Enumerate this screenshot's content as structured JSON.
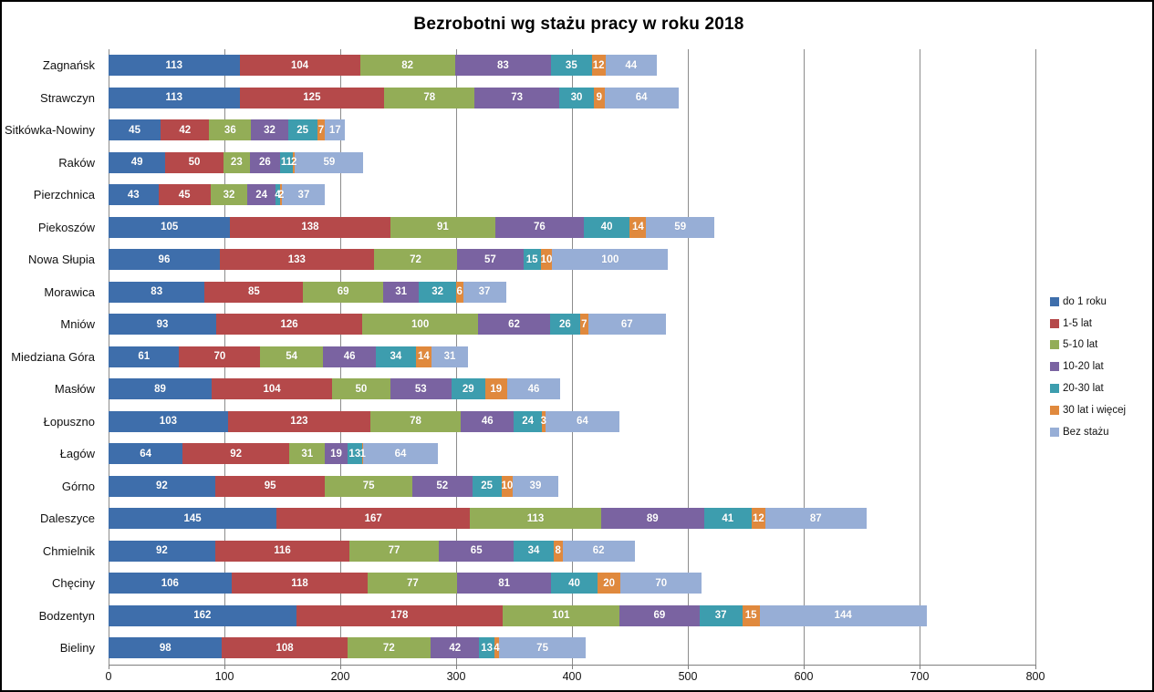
{
  "title": "Bezrobotni wg stażu pracy w roku 2018",
  "chart_data": {
    "type": "bar",
    "orientation": "horizontal",
    "stacked": true,
    "title": "Bezrobotni wg stażu pracy w roku 2018",
    "grid": true,
    "legend_position": "right",
    "xlim": [
      0,
      800
    ],
    "x_ticks": [
      0,
      100,
      200,
      300,
      400,
      500,
      600,
      700,
      800
    ],
    "categories": [
      "Zagnańsk",
      "Strawczyn",
      "Sitkówka-Nowiny",
      "Raków",
      "Pierzchnica",
      "Piekoszów",
      "Nowa Słupia",
      "Morawica",
      "Mniów",
      "Miedziana Góra",
      "Masłów",
      "Łopuszno",
      "Łagów",
      "Górno",
      "Daleszyce",
      "Chmielnik",
      "Chęciny",
      "Bodzentyn",
      "Bieliny"
    ],
    "series": [
      {
        "name": "do 1 roku",
        "color": "#3E6EAB",
        "values": [
          113,
          113,
          45,
          49,
          43,
          105,
          96,
          83,
          93,
          61,
          89,
          103,
          64,
          92,
          145,
          92,
          106,
          162,
          98
        ]
      },
      {
        "name": "1-5 lat",
        "color": "#B5494A",
        "values": [
          104,
          125,
          42,
          50,
          45,
          138,
          133,
          85,
          126,
          70,
          104,
          123,
          92,
          95,
          167,
          116,
          118,
          178,
          108
        ]
      },
      {
        "name": "5-10 lat",
        "color": "#93AD57",
        "values": [
          82,
          78,
          36,
          23,
          32,
          91,
          72,
          69,
          100,
          54,
          50,
          78,
          31,
          75,
          113,
          77,
          77,
          101,
          72
        ]
      },
      {
        "name": "10-20 lat",
        "color": "#7A63A1",
        "values": [
          83,
          73,
          32,
          26,
          24,
          76,
          57,
          31,
          62,
          46,
          53,
          46,
          19,
          52,
          89,
          65,
          81,
          69,
          42
        ]
      },
      {
        "name": "20-30 lat",
        "color": "#3D9DAE",
        "values": [
          35,
          30,
          25,
          11,
          4,
          40,
          15,
          32,
          26,
          34,
          29,
          24,
          13,
          25,
          41,
          34,
          40,
          37,
          13
        ]
      },
      {
        "name": "30 lat i więcej",
        "color": "#E0893D",
        "values": [
          12,
          9,
          7,
          2,
          2,
          14,
          10,
          6,
          7,
          14,
          19,
          3,
          1,
          10,
          12,
          8,
          20,
          15,
          4
        ]
      },
      {
        "name": "Bez stażu",
        "color": "#97AED6",
        "values": [
          44,
          64,
          17,
          59,
          37,
          59,
          100,
          37,
          67,
          31,
          46,
          64,
          64,
          39,
          87,
          62,
          70,
          144,
          75
        ]
      }
    ]
  }
}
